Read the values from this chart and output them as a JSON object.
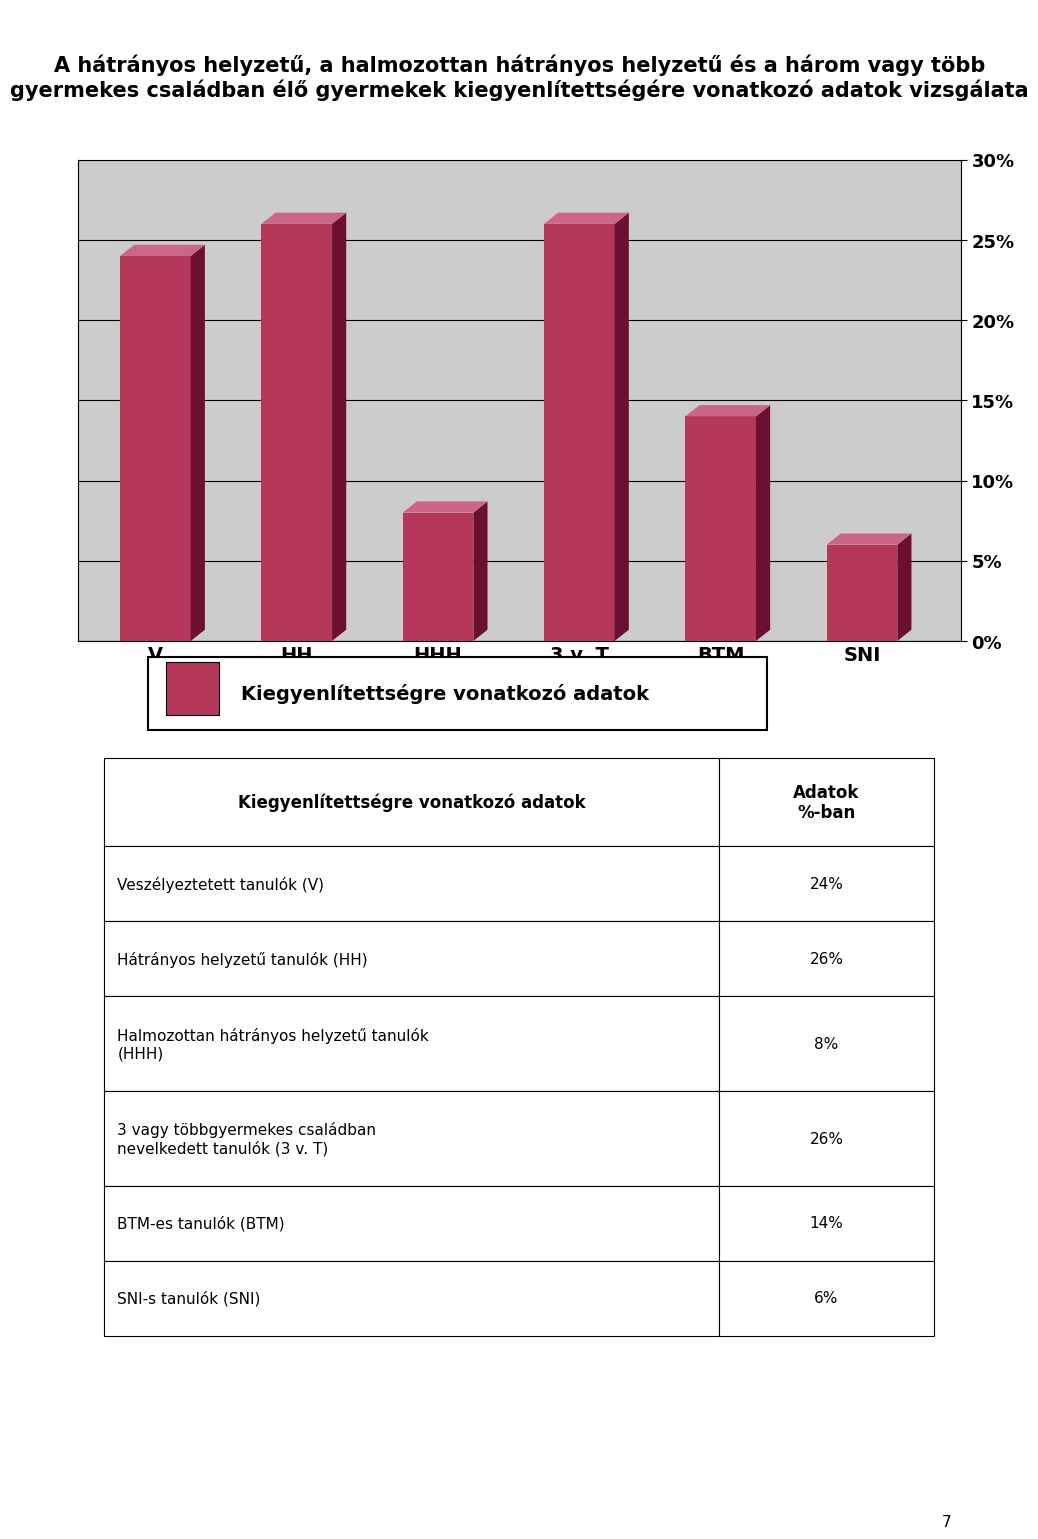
{
  "title_line1": "A hátrányos helyzetű, a halmozottan hátrányos helyzetű és a három vagy több",
  "title_line2": "gyermekes családban élő gyermekek kiegyenlítettségére vonatkozó adatok vizsgálata",
  "categories": [
    "V",
    "HH",
    "HHH",
    "3 v. T",
    "BTM",
    "SNI"
  ],
  "values": [
    0.24,
    0.26,
    0.08,
    0.26,
    0.14,
    0.06
  ],
  "bar_color_front": "#b5375a",
  "bar_color_dark": "#6b1030",
  "bar_color_top": "#cc6688",
  "chart_bg": "#cccccc",
  "ylim": [
    0,
    0.3
  ],
  "yticks": [
    0.0,
    0.05,
    0.1,
    0.15,
    0.2,
    0.25,
    0.3
  ],
  "ytick_labels": [
    "0%",
    "5%",
    "10%",
    "15%",
    "20%",
    "25%",
    "30%"
  ],
  "legend_label": "Kiegyenlítettségre vonatkozó adatok",
  "table_header_col1": "Kiegyenlítettségre vonatkozó adatok",
  "table_header_col2": "Adatok\n%-ban",
  "table_rows": [
    [
      "Veszélyeztetett tanulók (V)",
      "24%"
    ],
    [
      "Hátrányos helyzetű tanulók (HH)",
      "26%"
    ],
    [
      "Halmozottan hátrányos helyzetű tanulók\n(HHH)",
      "8%"
    ],
    [
      "3 vagy többgyermekes családban\nnevelkedett tanulók (3 v. T)",
      "26%"
    ],
    [
      "BTM-es tanulók (BTM)",
      "14%"
    ],
    [
      "SNI-s tanulók (SNI)",
      "6%"
    ]
  ],
  "page_number": "7",
  "background_color": "#ffffff"
}
